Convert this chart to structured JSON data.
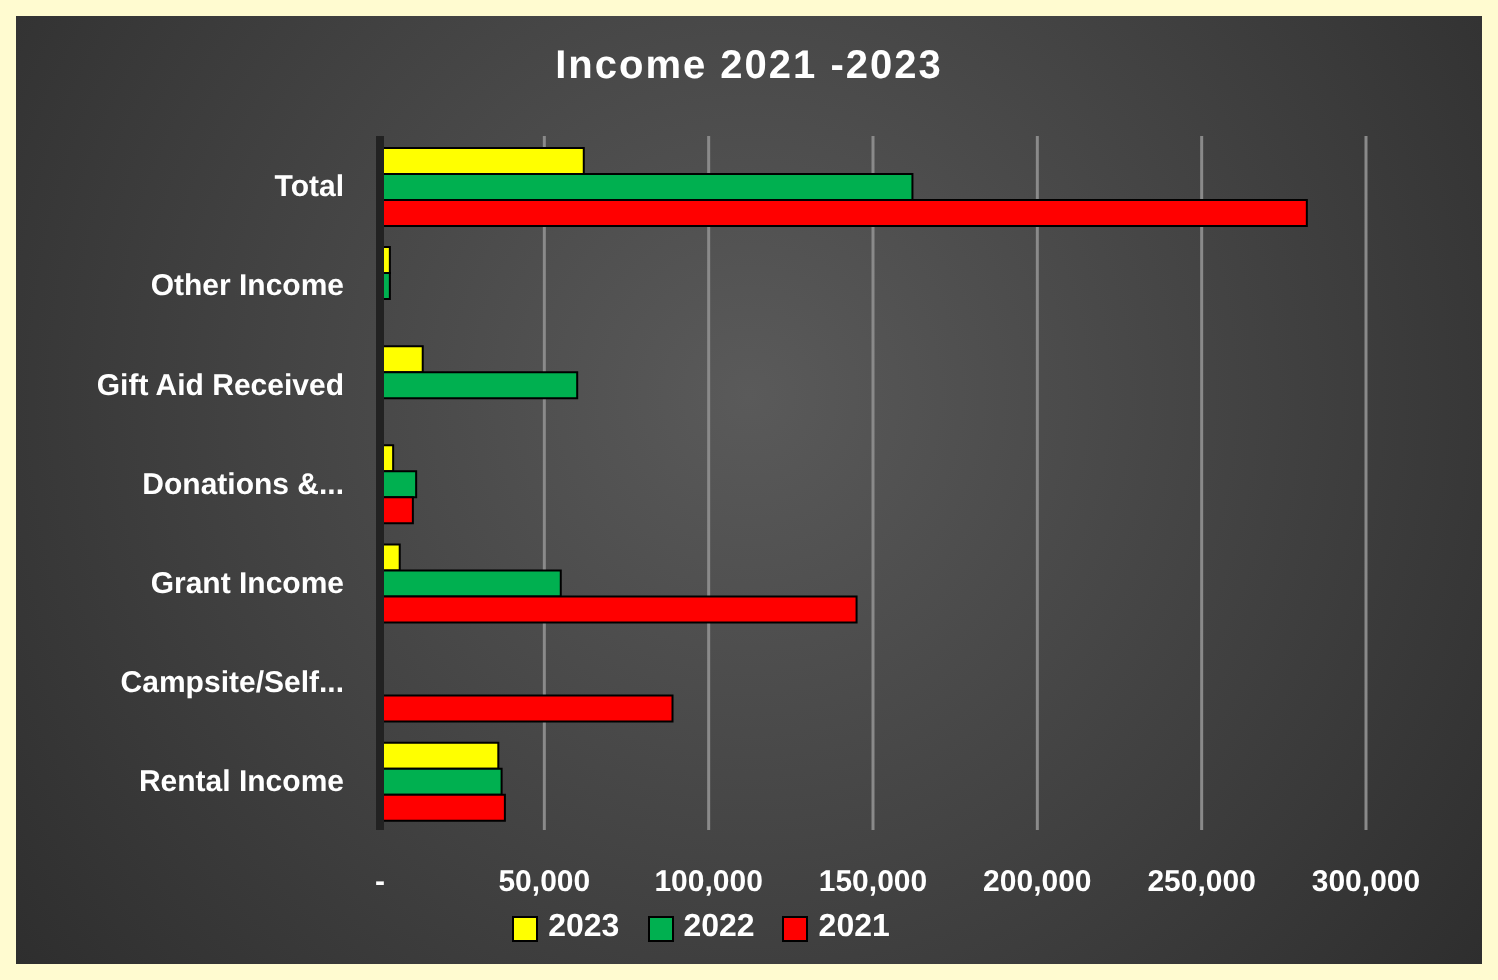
{
  "chart_data": {
    "type": "bar",
    "orientation": "horizontal",
    "title": "Income 2021 -2023",
    "categories": [
      "Total",
      "Other Income",
      "Gift Aid Received",
      "Donations &...",
      "Grant Income",
      "Campsite/Self...",
      "Rental Income"
    ],
    "series": [
      {
        "name": "2023",
        "color": "#ffff00",
        "values": [
          62000,
          3000,
          13000,
          4000,
          6000,
          null,
          36000
        ]
      },
      {
        "name": "2022",
        "color": "#00b050",
        "values": [
          162000,
          3000,
          60000,
          11000,
          55000,
          0,
          37000
        ]
      },
      {
        "name": "2021",
        "color": "#ff0000",
        "values": [
          282000,
          null,
          0,
          10000,
          145000,
          89000,
          38000
        ]
      }
    ],
    "xlim": [
      0,
      300000
    ],
    "xticks": [
      {
        "value": 0,
        "label": "-"
      },
      {
        "value": 50000,
        "label": "50,000"
      },
      {
        "value": 100000,
        "label": "100,000"
      },
      {
        "value": 150000,
        "label": "150,000"
      },
      {
        "value": 200000,
        "label": "200,000"
      },
      {
        "value": 250000,
        "label": "250,000"
      },
      {
        "value": 300000,
        "label": "300,000"
      }
    ],
    "grid": "x",
    "legend": "bottom"
  }
}
